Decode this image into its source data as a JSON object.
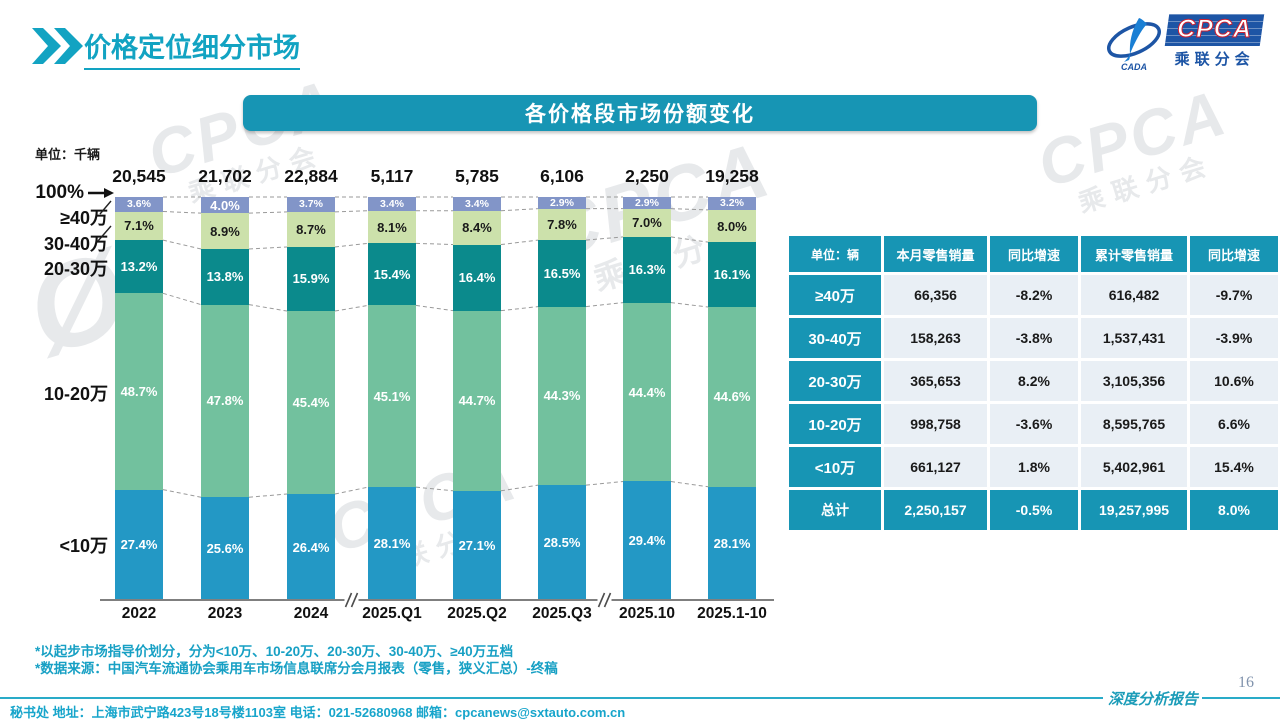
{
  "page": {
    "title": "价格定位细分市场",
    "page_number": "16",
    "report_type": "深度分析报告"
  },
  "logo": {
    "cpca": "CPCA",
    "sub": "乘联分会",
    "cada": "CADA"
  },
  "banner": {
    "title": "各价格段市场份额变化"
  },
  "chart_data": {
    "type": "bar",
    "subtype": "stacked-100-percent",
    "unit_label": "单位：千辆",
    "axis_top_label": "100%",
    "categories": [
      "2022",
      "2023",
      "2024",
      "2025.Q1",
      "2025.Q2",
      "2025.Q3",
      "2025.10",
      "2025.1-10"
    ],
    "totals": [
      "20,545",
      "21,702",
      "22,884",
      "5,117",
      "5,785",
      "6,106",
      "2,250",
      "19,258"
    ],
    "series": [
      {
        "name": "≥40万",
        "color": "#8295c8",
        "text_color": "#ffffff",
        "values": [
          3.6,
          4.0,
          3.7,
          3.4,
          3.4,
          2.9,
          2.9,
          3.2
        ]
      },
      {
        "name": "30-40万",
        "color": "#cce1ab",
        "text_color": "#1a1a1a",
        "values": [
          7.1,
          8.9,
          8.7,
          8.1,
          8.4,
          7.8,
          7.0,
          8.0
        ]
      },
      {
        "name": "20-30万",
        "color": "#0b8a8c",
        "text_color": "#ffffff",
        "values": [
          13.2,
          13.8,
          15.9,
          15.4,
          16.4,
          16.5,
          16.3,
          16.1
        ]
      },
      {
        "name": "10-20万",
        "color": "#72c19e",
        "text_color": "#ffffff",
        "values": [
          48.7,
          47.8,
          45.4,
          45.1,
          44.7,
          44.3,
          44.4,
          44.6
        ]
      },
      {
        "name": "<10万",
        "color": "#2398c5",
        "text_color": "#ffffff",
        "values": [
          27.4,
          25.6,
          26.4,
          28.1,
          27.1,
          28.5,
          29.4,
          28.1
        ]
      }
    ],
    "axis_breaks_after_categories": [
      "2024",
      "2025.Q3"
    ],
    "ylim": [
      0,
      100
    ],
    "grid": false,
    "legend_position": "left-axis-labels"
  },
  "table": {
    "header": [
      "单位：辆",
      "本月零售销量",
      "同比增速",
      "累计零售销量",
      "同比增速"
    ],
    "rows": [
      {
        "label": "≥40万",
        "cells": [
          "66,356",
          "-8.2%",
          "616,482",
          "-9.7%"
        ]
      },
      {
        "label": "30-40万",
        "cells": [
          "158,263",
          "-3.8%",
          "1,537,431",
          "-3.9%"
        ]
      },
      {
        "label": "20-30万",
        "cells": [
          "365,653",
          "8.2%",
          "3,105,356",
          "10.6%"
        ]
      },
      {
        "label": "10-20万",
        "cells": [
          "998,758",
          "-3.6%",
          "8,595,765",
          "6.6%"
        ]
      },
      {
        "label": "<10万",
        "cells": [
          "661,127",
          "1.8%",
          "5,402,961",
          "15.4%"
        ]
      }
    ],
    "total": {
      "label": "总计",
      "cells": [
        "2,250,157",
        "-0.5%",
        "19,257,995",
        "8.0%"
      ]
    }
  },
  "notes": [
    "*以起步市场指导价划分，分为<10万、10-20万、20-30万、30-40万、≥40万五档",
    "*数据来源：中国汽车流通协会乘用车市场信息联席分会月报表（零售，狭义汇总）-终稿"
  ],
  "footer": {
    "contact": "秘书处  地址：上海市武宁路423号18号楼1103室 电话：021-52680968  邮箱：cpcanews@sxtauto.com.cn"
  }
}
